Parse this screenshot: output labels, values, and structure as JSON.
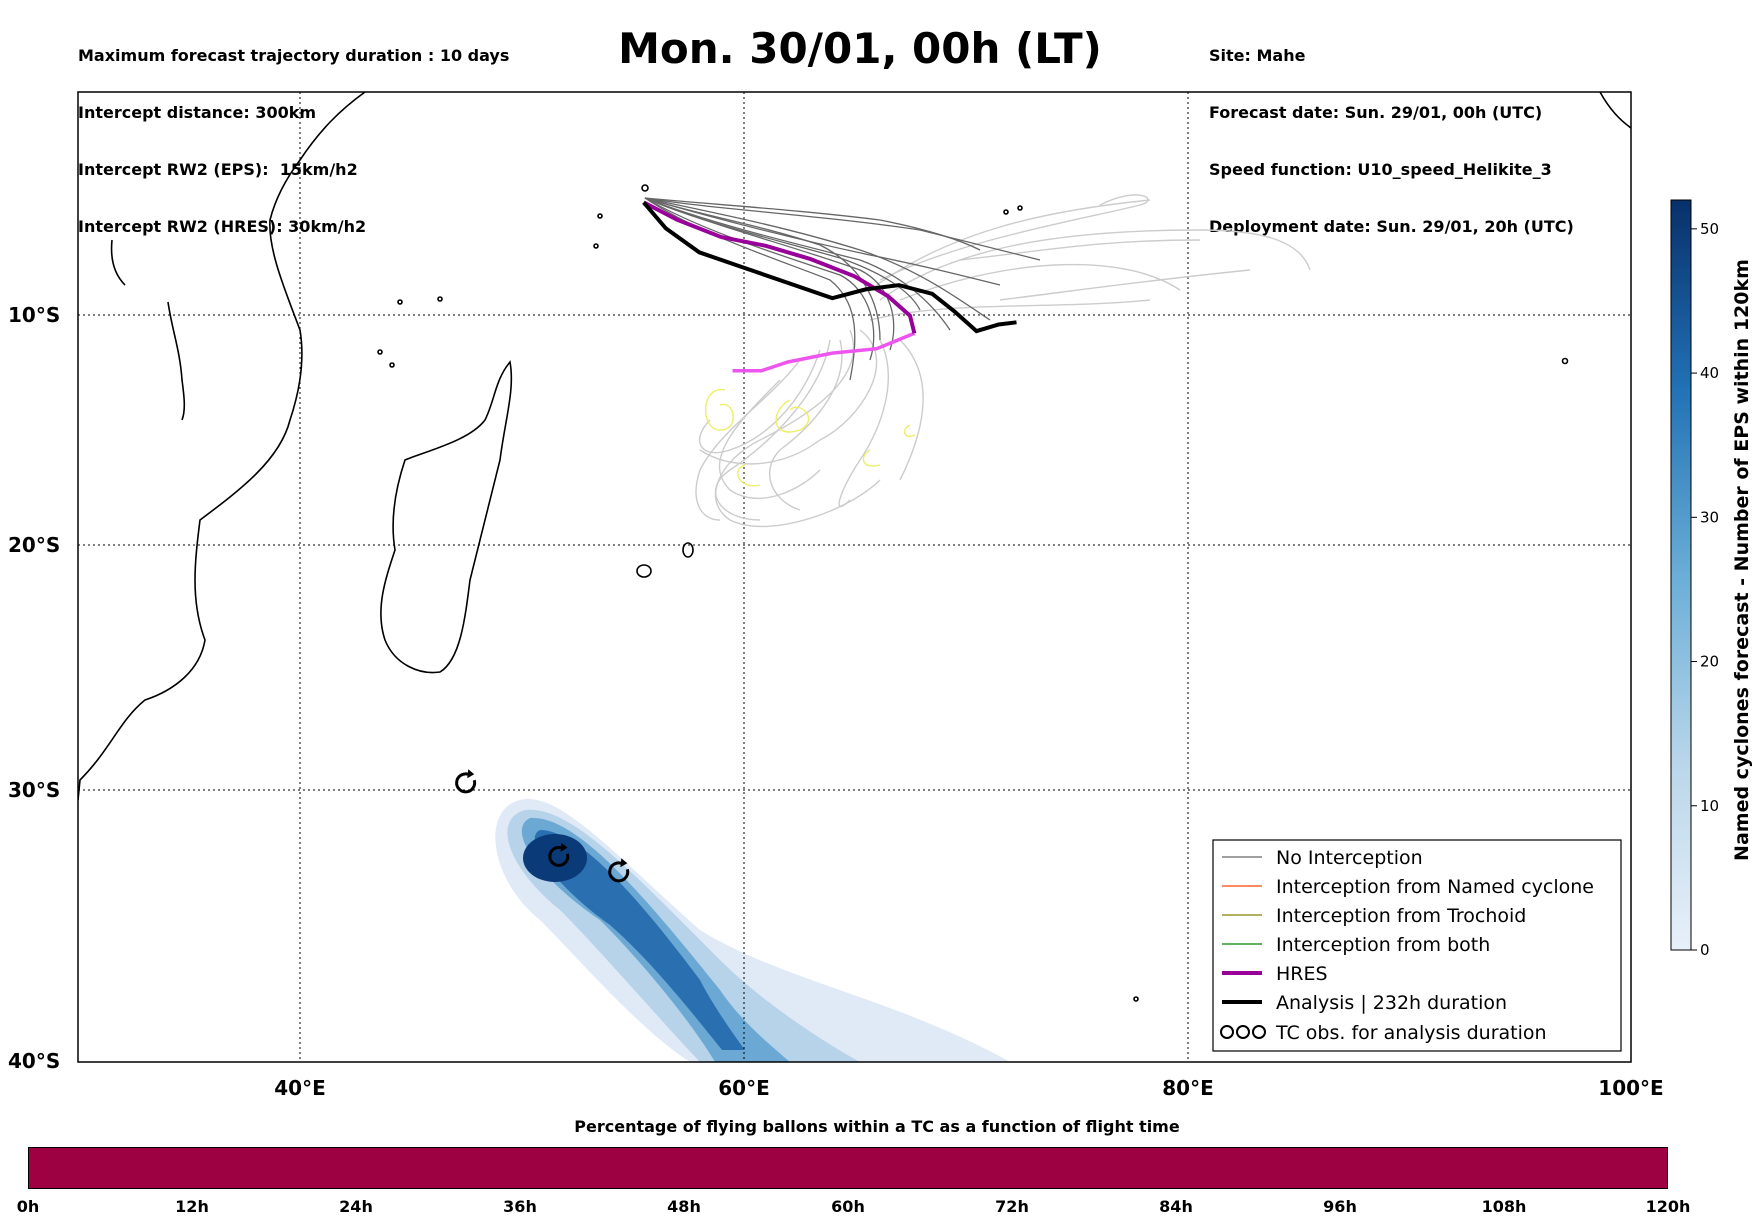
{
  "header": {
    "left": [
      "Maximum forecast trajectory duration : 10 days",
      "Intercept distance: 300km",
      "Intercept RW2 (EPS):  15km/h2",
      "Intercept RW2 (HRES): 30km/h2"
    ],
    "title": "Mon. 30/01, 00h (LT)",
    "right": [
      "Site: Mahe",
      "Forecast date: Sun. 29/01, 00h (UTC)",
      "Speed function: U10_speed_Helikite_3",
      "Deployment date: Sun. 29/01, 20h (UTC)"
    ]
  },
  "map": {
    "lat_ticks": [
      "10°S",
      "20°S",
      "30°S",
      "40°S"
    ],
    "lon_ticks": [
      "40°E",
      "60°E",
      "80°E",
      "100°E"
    ],
    "extent": {
      "lon": [
        30,
        100
      ],
      "lat": [
        -40.5,
        0.5
      ]
    },
    "colors": {
      "land_outline": "#000000",
      "no_interception": "#666666",
      "late_tracks": "#cccccc",
      "hres": "#990099",
      "hres_late": "#ee55ee",
      "analysis": "#000000",
      "trochoid": "#eeee66"
    },
    "tc_obs_icon": "cyclone-symbol-icon"
  },
  "chart_data": {
    "type": "map",
    "launch_site": {
      "name": "Mahe",
      "lon": 55.5,
      "lat": -4.6
    },
    "hres_track": [
      [
        55.5,
        -4.6
      ],
      [
        57,
        -5.4
      ],
      [
        59,
        -6.2
      ],
      [
        61,
        -6.6
      ],
      [
        63,
        -7.2
      ],
      [
        65,
        -8.0
      ],
      [
        66.5,
        -8.9
      ],
      [
        67.5,
        -9.8
      ],
      [
        67.7,
        -10.6
      ]
    ],
    "hres_late_track": [
      [
        67.7,
        -10.6
      ],
      [
        66,
        -11.3
      ],
      [
        64,
        -11.5
      ],
      [
        62,
        -11.9
      ],
      [
        60.8,
        -12.3
      ],
      [
        59.5,
        -12.3
      ]
    ],
    "analysis_track": [
      [
        55.5,
        -4.6
      ],
      [
        56.5,
        -5.8
      ],
      [
        58,
        -6.9
      ],
      [
        60,
        -7.6
      ],
      [
        62,
        -8.3
      ],
      [
        64,
        -9.0
      ],
      [
        65.5,
        -8.6
      ],
      [
        67,
        -8.4
      ],
      [
        68.5,
        -8.8
      ],
      [
        69.5,
        -9.6
      ],
      [
        70.5,
        -10.5
      ],
      [
        71.5,
        -10.2
      ],
      [
        72.3,
        -10.1
      ]
    ],
    "analysis_duration": "232h",
    "tc_observations": [
      [
        47.5,
        -30.0
      ],
      [
        51.7,
        -32.9
      ],
      [
        54.4,
        -33.5
      ]
    ],
    "eps_density": {
      "max": 52,
      "core": [
        [
          51,
          -32.8
        ],
        [
          56,
          -35
        ],
        [
          60,
          -38.5
        ]
      ]
    },
    "legend": [
      {
        "label": "No Interception",
        "color": "#666666",
        "style": "thin"
      },
      {
        "label": "Interception from Named cyclone",
        "color": "#ff4500",
        "style": "thin"
      },
      {
        "label": "Interception from Trochoid",
        "color": "#808000",
        "style": "thin"
      },
      {
        "label": "Interception from both",
        "color": "#008000",
        "style": "thin"
      },
      {
        "label": "HRES",
        "color": "#990099",
        "style": "thick"
      },
      {
        "label": "Analysis | 232h duration",
        "color": "#000000",
        "style": "thick"
      },
      {
        "label": "TC obs. for analysis duration",
        "color": "#000000",
        "style": "symbol"
      }
    ],
    "colorbar": {
      "label": "Named cyclones forecast - Number of EPS within 120km",
      "ticks": [
        0,
        10,
        20,
        30,
        40,
        50
      ],
      "max": 52,
      "cmap_start": "#e8f0f9",
      "cmap_end": "#08306b"
    },
    "flight_bar": {
      "title": "Percentage of flying ballons within a TC as a function of flight time",
      "ticks": [
        "0h",
        "12h",
        "24h",
        "36h",
        "48h",
        "60h",
        "72h",
        "84h",
        "96h",
        "108h",
        "120h"
      ],
      "color": "#9e0142"
    }
  }
}
